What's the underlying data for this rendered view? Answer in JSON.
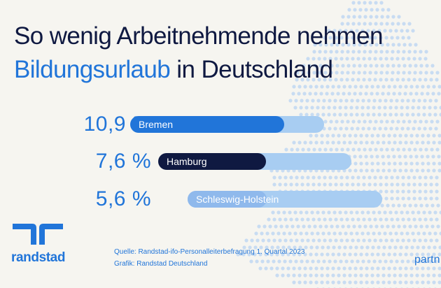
{
  "title": {
    "line1": "So wenig Arbeitnehmende nehmen",
    "line2_accent": "Bildungsurlaub",
    "line2_rest": " in Deutschland"
  },
  "chart_data": {
    "type": "bar",
    "orientation": "horizontal",
    "unit": "%",
    "categories": [
      "Bremen",
      "Hamburg",
      "Schleswig-Holstein"
    ],
    "values": [
      10.9,
      7.6,
      5.6
    ],
    "value_labels": [
      "10,9 %",
      "7,6 %",
      "5,6 %"
    ],
    "colors": {
      "Bremen": "#2175d9",
      "Hamburg": "#0f1941",
      "Schleswig-Holstein": "#8fb9ec",
      "track": "#a8cdf2"
    }
  },
  "footer": {
    "source": "Quelle: Randstad-ifo-Personalleiterbefragung 1. Quartal 2023",
    "graphic": "Grafik: Randstad Deutschland"
  },
  "brand": {
    "name": "randstad",
    "partner_fragment": "partn",
    "logo_icon": "randstad-logo-icon",
    "color": "#2175d9"
  }
}
